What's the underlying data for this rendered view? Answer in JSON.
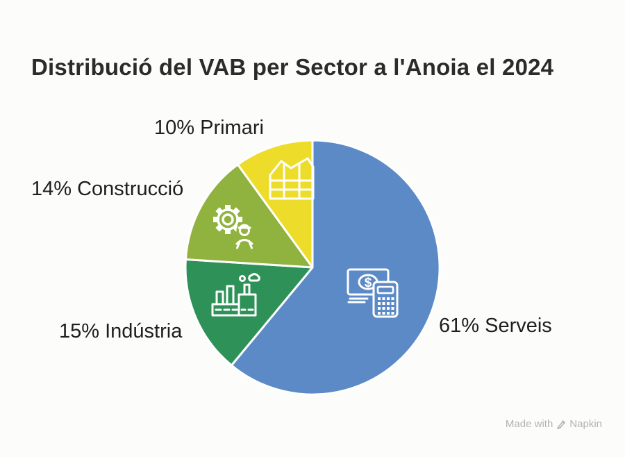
{
  "chart_data": {
    "type": "pie",
    "title": "Distribució del VAB per Sector a l'Anoia el 2024",
    "unit": "%",
    "start_angle_deg": 0,
    "direction": "clockwise",
    "legend": "none",
    "labels_position": "outside",
    "slices": [
      {
        "key": "serveis",
        "name": "Serveis",
        "pct": 61,
        "label": "61% Serveis",
        "color": "#5b8ac6",
        "icon": "money-calculator-icon"
      },
      {
        "key": "industria",
        "name": "Indústria",
        "pct": 15,
        "label": "15% Indústria",
        "color": "#2e9158",
        "icon": "factory-icon"
      },
      {
        "key": "construccio",
        "name": "Construcció",
        "pct": 14,
        "label": "14% Construcció",
        "color": "#90b23f",
        "icon": "gear-worker-icon"
      },
      {
        "key": "primari",
        "name": "Primari",
        "pct": 10,
        "label": "10% Primari",
        "color": "#eedc2b",
        "icon": "greenhouse-icon"
      }
    ]
  },
  "watermark": {
    "prefix": "Made with",
    "brand": "Napkin"
  }
}
